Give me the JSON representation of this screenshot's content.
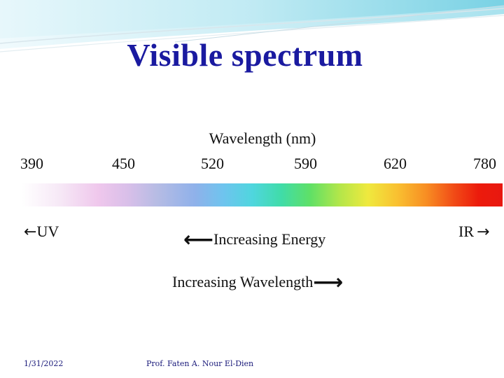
{
  "title": "Visible spectrum",
  "axis_label": "Wavelength (nm)",
  "ticks": [
    "390",
    "450",
    "520",
    "590",
    "620",
    "780"
  ],
  "uv_label": "UV",
  "ir_label": "IR",
  "energy_label": "Increasing Energy",
  "wavelength_label": "Increasing Wavelength",
  "footer": {
    "date": "1/31/2022",
    "author": "Prof. Faten A. Nour El-Dien"
  },
  "colors": {
    "title": "#1a1aa0",
    "header_swoosh": "#7fd6e6"
  }
}
